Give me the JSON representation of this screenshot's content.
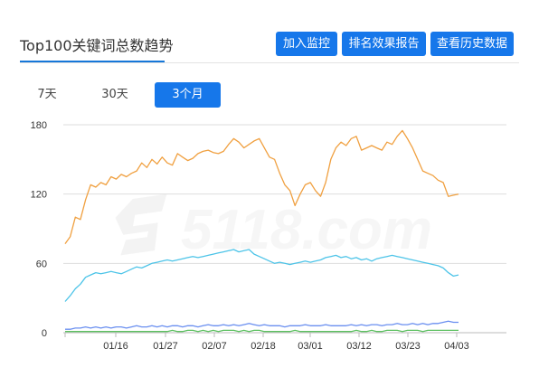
{
  "header": {
    "title": "Top100关键词总数趋势",
    "buttons": [
      "加入监控",
      "排名效果报告",
      "查看历史数据"
    ]
  },
  "range_tabs": {
    "items": [
      "7天",
      "30天",
      "3个月"
    ],
    "active": "3个月"
  },
  "watermark": {
    "text": "5118.com"
  },
  "colors": {
    "accent": "#1677ea",
    "orange": "#f0a040",
    "cyan": "#4dc4e8",
    "blue": "#6a8ff0",
    "green": "#5cc060"
  },
  "chart_data": {
    "type": "line",
    "x_tick_labels": [
      "01/16",
      "01/27",
      "02/07",
      "02/18",
      "03/01",
      "03/12",
      "03/23",
      "04/03"
    ],
    "ylim": [
      0,
      180
    ],
    "y_ticks": [
      0,
      60,
      120,
      180
    ],
    "grid": true,
    "legend": "none",
    "series": [
      {
        "color": "#f0a040",
        "values": [
          77,
          83,
          100,
          98,
          115,
          128,
          126,
          130,
          128,
          135,
          133,
          137,
          135,
          138,
          140,
          147,
          143,
          150,
          146,
          152,
          147,
          145,
          155,
          152,
          149,
          151,
          155,
          157,
          158,
          156,
          155,
          157,
          163,
          168,
          165,
          160,
          163,
          166,
          168,
          160,
          152,
          150,
          138,
          128,
          123,
          110,
          120,
          128,
          130,
          123,
          118,
          130,
          150,
          160,
          165,
          162,
          168,
          170,
          158,
          160,
          162,
          160,
          158,
          165,
          163,
          170,
          175,
          168,
          160,
          150,
          140,
          138,
          136,
          132,
          130,
          118,
          119,
          120
        ]
      },
      {
        "color": "#4dc4e8",
        "values": [
          27,
          32,
          38,
          42,
          48,
          50,
          52,
          51,
          52,
          53,
          52,
          51,
          53,
          55,
          57,
          56,
          58,
          60,
          61,
          62,
          63,
          62,
          63,
          64,
          65,
          66,
          65,
          66,
          67,
          68,
          69,
          70,
          71,
          72,
          70,
          71,
          72,
          68,
          66,
          64,
          62,
          60,
          61,
          60,
          59,
          60,
          61,
          62,
          61,
          62,
          63,
          65,
          66,
          67,
          65,
          66,
          64,
          65,
          63,
          64,
          62,
          64,
          65,
          66,
          67,
          66,
          65,
          64,
          63,
          62,
          61,
          60,
          59,
          58,
          56,
          52,
          49,
          50
        ]
      },
      {
        "color": "#6a8ff0",
        "values": [
          3,
          3,
          4,
          4,
          5,
          4,
          5,
          4,
          5,
          4,
          5,
          5,
          4,
          5,
          6,
          5,
          5,
          6,
          5,
          6,
          5,
          6,
          6,
          5,
          6,
          6,
          5,
          6,
          7,
          6,
          6,
          7,
          6,
          7,
          6,
          7,
          8,
          7,
          6,
          7,
          6,
          6,
          6,
          5,
          6,
          6,
          6,
          7,
          6,
          6,
          6,
          7,
          6,
          6,
          6,
          6,
          7,
          6,
          7,
          6,
          7,
          7,
          6,
          7,
          7,
          8,
          7,
          7,
          8,
          7,
          8,
          7,
          8,
          8,
          9,
          10,
          9,
          9
        ]
      },
      {
        "color": "#5cc060",
        "values": [
          1,
          1,
          1,
          1,
          1,
          1,
          1,
          1,
          1,
          1,
          1,
          1,
          1,
          1,
          1,
          1,
          1,
          1,
          1,
          1,
          1,
          2,
          1,
          1,
          2,
          2,
          1,
          2,
          1,
          2,
          1,
          2,
          2,
          2,
          1,
          2,
          1,
          2,
          2,
          1,
          1,
          1,
          1,
          1,
          1,
          2,
          1,
          1,
          1,
          1,
          1,
          1,
          1,
          1,
          1,
          1,
          1,
          2,
          1,
          1,
          2,
          1,
          1,
          2,
          2,
          2,
          1,
          2,
          2,
          2,
          1,
          2,
          2,
          2,
          2,
          2,
          2,
          2
        ]
      }
    ]
  }
}
